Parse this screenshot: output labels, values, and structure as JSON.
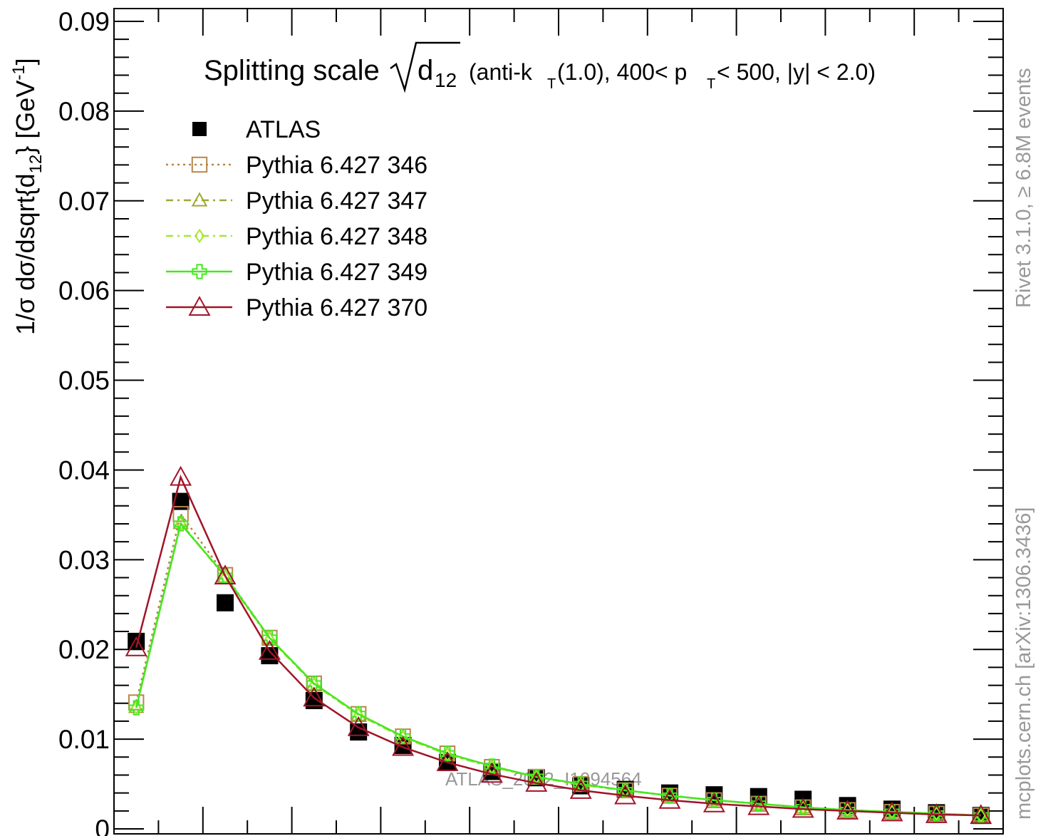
{
  "chart_data": {
    "type": "line",
    "title_main": "Splitting scale",
    "title_sym": "d",
    "title_sym_sub": "12",
    "title_rest_1": "(anti-k",
    "title_rest_1_sub": "T",
    "title_rest_2": "(1.0), 400< p",
    "title_rest_2_sub": "T",
    "title_rest_3": " < 500, |y| < 2.0)",
    "ylabel_main": "1/σ dσ/dsqrt{d",
    "ylabel_sub": "12",
    "ylabel_close": "} [GeV",
    "ylabel_sup": "-1",
    "ylabel_end": "]",
    "side_top": "Rivet 3.1.0, ≥ 6.8M events",
    "side_bottom": "mcplots.cern.ch [arXiv:1306.3436]",
    "watermark": "ATLAS_2012_I1094564",
    "ylim": [
      0,
      0.09
    ],
    "xlim": [
      0,
      100
    ],
    "yticks": [
      0,
      0.01,
      0.02,
      0.03,
      0.04,
      0.05,
      0.06,
      0.07,
      0.08,
      0.09
    ],
    "ytick_labels": [
      "0",
      "0.01",
      "0.02",
      "0.03",
      "0.04",
      "0.05",
      "0.06",
      "0.07",
      "0.08",
      "0.09"
    ],
    "x": [
      2.5,
      7.5,
      12.5,
      17.5,
      22.5,
      27.5,
      32.5,
      37.5,
      42.5,
      47.5,
      52.5,
      57.5,
      62.5,
      67.5,
      72.5,
      77.5,
      82.5,
      87.5,
      92.5,
      97.5
    ],
    "series": [
      {
        "name": "ATLAS",
        "color": "#000000",
        "marker": "filled-square",
        "line": "none",
        "values": [
          0.0209,
          0.0365,
          0.0252,
          0.0193,
          0.0143,
          0.0108,
          0.0093,
          0.0074,
          0.0064,
          0.0057,
          0.0048,
          0.0044,
          0.004,
          0.0038,
          0.0036,
          0.0033,
          0.0026,
          0.0022,
          0.0018,
          0.0015
        ]
      },
      {
        "name": "Pythia 6.427 346",
        "color": "#b8864b",
        "marker": "open-square",
        "line": "dotted",
        "values": [
          0.0141,
          0.0351,
          0.0283,
          0.0213,
          0.0162,
          0.0128,
          0.0103,
          0.0084,
          0.0069,
          0.0058,
          0.005,
          0.0043,
          0.0037,
          0.0032,
          0.0028,
          0.0024,
          0.0021,
          0.0019,
          0.0017,
          0.0015
        ]
      },
      {
        "name": "Pythia 6.427 347",
        "color": "#a0a832",
        "marker": "open-triangle-small",
        "line": "dashdot",
        "values": [
          0.0136,
          0.0341,
          0.0281,
          0.0212,
          0.0161,
          0.0127,
          0.0102,
          0.0083,
          0.0069,
          0.0058,
          0.0049,
          0.0043,
          0.0037,
          0.0032,
          0.0028,
          0.0024,
          0.0021,
          0.0019,
          0.0017,
          0.0015
        ]
      },
      {
        "name": "Pythia 6.427 348",
        "color": "#a4e830",
        "marker": "open-diamond",
        "line": "dashdot",
        "values": [
          0.0135,
          0.034,
          0.0281,
          0.0212,
          0.0161,
          0.0127,
          0.0102,
          0.0083,
          0.0069,
          0.0058,
          0.0049,
          0.0043,
          0.0037,
          0.0032,
          0.0028,
          0.0024,
          0.0021,
          0.0019,
          0.0017,
          0.0015
        ]
      },
      {
        "name": "Pythia 6.427 349",
        "color": "#44e820",
        "marker": "open-cross",
        "line": "solid",
        "values": [
          0.0135,
          0.034,
          0.0282,
          0.0213,
          0.0162,
          0.0128,
          0.0103,
          0.0084,
          0.007,
          0.0058,
          0.005,
          0.0043,
          0.0037,
          0.0032,
          0.0028,
          0.0024,
          0.0021,
          0.0019,
          0.0017,
          0.0015
        ]
      },
      {
        "name": "Pythia 6.427 370",
        "color": "#a01428",
        "marker": "open-triangle",
        "line": "solid",
        "values": [
          0.0202,
          0.0392,
          0.0282,
          0.0198,
          0.0146,
          0.0113,
          0.0091,
          0.0074,
          0.0061,
          0.0051,
          0.0043,
          0.0037,
          0.0032,
          0.0028,
          0.0025,
          0.0022,
          0.002,
          0.0018,
          0.0016,
          0.0015
        ]
      }
    ]
  }
}
